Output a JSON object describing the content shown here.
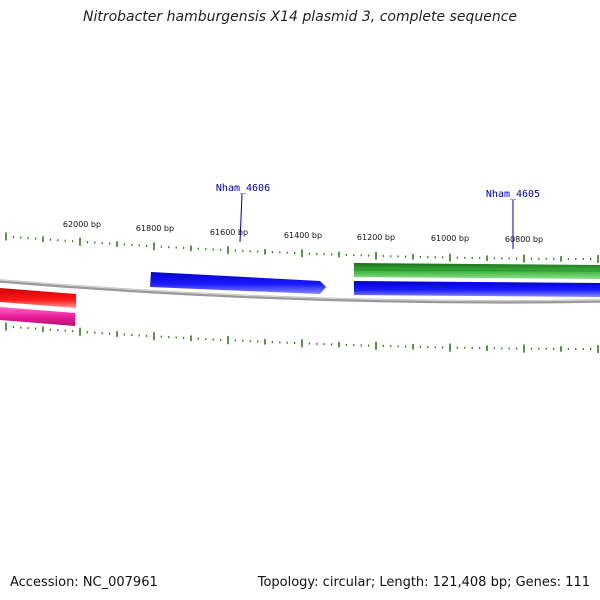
{
  "title": "Nitrobacter hamburgensis X14 plasmid 3, complete sequence",
  "accession": "Accession: NC_007961",
  "summary": "Topology: circular; Length: 121,408 bp; Genes: 111",
  "scale_labels": [
    "62000 bp",
    "61800 bp",
    "61600 bp",
    "61400 bp",
    "61200 bp",
    "61000 bp",
    "60800 bp"
  ],
  "gene_labels": [
    "Nham_4606",
    "Nham_4605"
  ],
  "colors": {
    "tick": "#2e7d1a",
    "backbone": "#888888",
    "gene_forward": "#1a1aff",
    "gene_reverse": "#2e9e2e",
    "gene_red": "#ee1111",
    "gene_pink": "#ee2299",
    "label": "#000099"
  }
}
